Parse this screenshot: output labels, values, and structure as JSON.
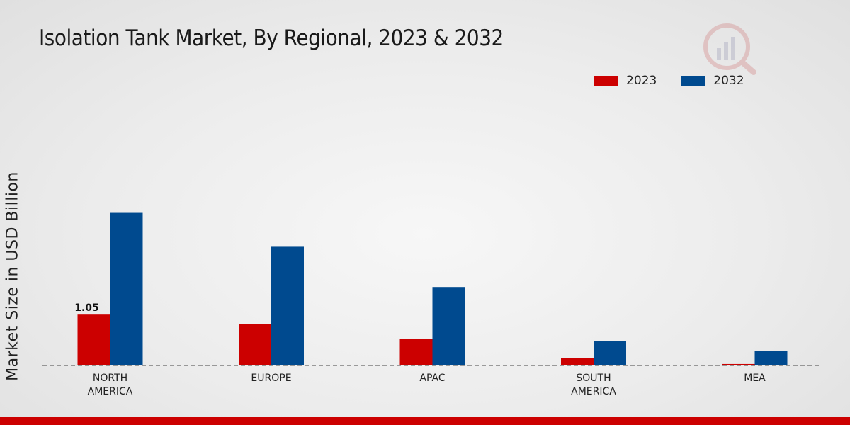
{
  "chart_data": {
    "type": "bar",
    "title": "Isolation Tank Market, By Regional, 2023 & 2032",
    "ylabel": "Market Size in USD Billion",
    "xlabel": "",
    "categories": [
      "NORTH\nAMERICA",
      "EUROPE",
      "APAC",
      "SOUTH\nAMERICA",
      "MEA"
    ],
    "series": [
      {
        "name": "2023",
        "color": "#cc0000",
        "values": [
          1.05,
          0.85,
          0.55,
          0.15,
          0.03
        ]
      },
      {
        "name": "2032",
        "color": "#004a8f",
        "values": [
          3.15,
          2.45,
          1.62,
          0.5,
          0.3
        ]
      }
    ],
    "data_labels": [
      {
        "series": 0,
        "index": 0,
        "text": "1.05"
      }
    ],
    "ylim": [
      0,
      4.5
    ],
    "grid": false,
    "legend_position": "top-right"
  }
}
